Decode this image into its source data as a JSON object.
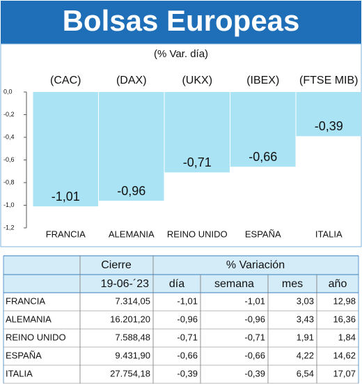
{
  "title": "Bolsas Europeas",
  "subtitle": "(% Var. día)",
  "chart_data": {
    "type": "bar",
    "tickers": [
      "(CAC)",
      "(DAX)",
      "(UKX)",
      "(IBEX)",
      "(FTSE MIB)"
    ],
    "categories": [
      "FRANCIA",
      "ALEMANIA",
      "REINO UNIDO",
      "ESPAÑA",
      "ITALIA"
    ],
    "values": [
      -1.01,
      -0.96,
      -0.71,
      -0.66,
      -0.39
    ],
    "value_labels": [
      "-1,01",
      "-0,96",
      "-0,71",
      "-0,66",
      "-0,39"
    ],
    "color": "#a9e3f4",
    "ylim": [
      -1.2,
      0
    ],
    "yticks": [
      {
        "value": 0,
        "label": "0,0"
      },
      {
        "value": -0.2,
        "label": "-0,2"
      },
      {
        "value": -0.4,
        "label": "-0,4"
      },
      {
        "value": -0.6,
        "label": "-0,6"
      },
      {
        "value": -0.8,
        "label": "-0,8"
      },
      {
        "value": -1,
        "label": "-1,0"
      },
      {
        "value": -1.2,
        "label": "-1,2"
      }
    ]
  },
  "table": {
    "header": [
      "Cierre",
      "% Variación"
    ],
    "subheader": [
      "19-06-´23",
      "día",
      "semana",
      "mes",
      "año"
    ],
    "rows": [
      [
        "FRANCIA",
        "7.314,05",
        "-1,01",
        "-1,01",
        "3,03",
        "12,98"
      ],
      [
        "ALEMANIA",
        "16.201,20",
        "-0,96",
        "-0,96",
        "3,43",
        "16,36"
      ],
      [
        "REINO UNIDO",
        "7.588,48",
        "-0,71",
        "-0,71",
        "1,91",
        "1,84"
      ],
      [
        "ESPAÑA",
        "9.431,90",
        "-0,66",
        "-0,66",
        "4,22",
        "14,62"
      ],
      [
        "ITALIA",
        "27.754,18",
        "-0,39",
        "-0,39",
        "6,54",
        "17,07"
      ]
    ]
  }
}
